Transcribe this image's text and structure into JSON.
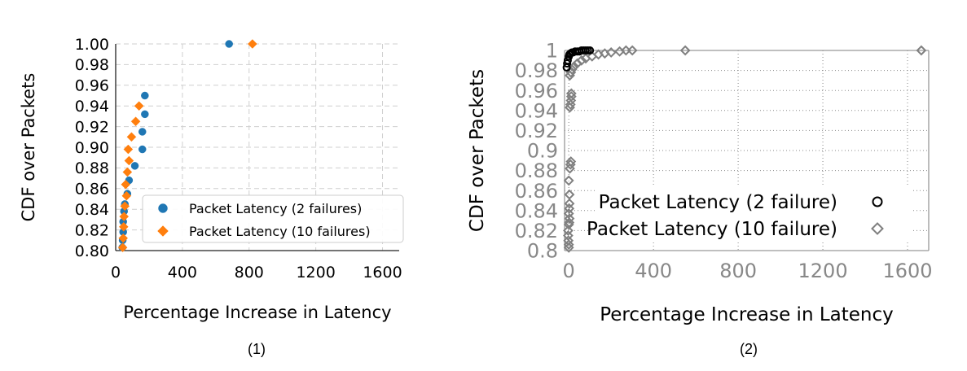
{
  "panels": [
    {
      "caption": "(1)",
      "chart_data": {
        "type": "scatter",
        "title": "",
        "xlabel": "Percentage Increase in Latency",
        "ylabel": "CDF over Packets",
        "xlim": [
          0,
          1700
        ],
        "ylim": [
          0.8,
          1.0
        ],
        "xticks": [
          "0",
          "400",
          "800",
          "1200",
          "1600"
        ],
        "yticks": [
          "0.80",
          "0.82",
          "0.84",
          "0.86",
          "0.88",
          "0.90",
          "0.92",
          "0.94",
          "0.96",
          "0.98",
          "1.00"
        ],
        "grid": true,
        "legend_position": "lower-right",
        "series": [
          {
            "name": "Packet Latency (2 failures)",
            "color": "#1f77b4",
            "marker": "circle",
            "points": [
              [
                680,
                1.0
              ],
              [
                175,
                0.95
              ],
              [
                175,
                0.932
              ],
              [
                160,
                0.915
              ],
              [
                160,
                0.898
              ],
              [
                115,
                0.882
              ],
              [
                80,
                0.868
              ],
              [
                70,
                0.855
              ],
              [
                55,
                0.845
              ],
              [
                50,
                0.838
              ],
              [
                45,
                0.828
              ],
              [
                45,
                0.818
              ],
              [
                42,
                0.81
              ],
              [
                40,
                0.803
              ]
            ]
          },
          {
            "name": "Packet Latency (10 failures)",
            "color": "#ff7f0e",
            "marker": "diamond",
            "points": [
              [
                820,
                1.0
              ],
              [
                140,
                0.94
              ],
              [
                120,
                0.925
              ],
              [
                95,
                0.91
              ],
              [
                75,
                0.898
              ],
              [
                80,
                0.887
              ],
              [
                70,
                0.876
              ],
              [
                60,
                0.864
              ],
              [
                65,
                0.853
              ],
              [
                55,
                0.843
              ],
              [
                50,
                0.833
              ],
              [
                48,
                0.823
              ],
              [
                45,
                0.812
              ],
              [
                42,
                0.803
              ]
            ]
          }
        ]
      }
    },
    {
      "caption": "(2)",
      "chart_data": {
        "type": "scatter",
        "title": "",
        "xlabel": "Percentage Increase in Latency",
        "ylabel": "CDF over Packets",
        "xlim": [
          -20,
          1700
        ],
        "ylim": [
          0.8,
          1.0
        ],
        "xticks": [
          "0",
          "400",
          "800",
          "1200",
          "1600"
        ],
        "yticks": [
          "0.8",
          "0.82",
          "0.84",
          "0.86",
          "0.88",
          "0.9",
          "0.92",
          "0.94",
          "0.96",
          "0.98",
          "1"
        ],
        "grid": true,
        "legend_position": "lower-right",
        "series": [
          {
            "name": "Packet Latency (2 failure)",
            "color": "#000000",
            "marker": "circle-open",
            "points": [
              [
                -10,
                0.983
              ],
              [
                -8,
                0.987
              ],
              [
                -5,
                0.99
              ],
              [
                0,
                0.994
              ],
              [
                3,
                0.996
              ],
              [
                8,
                0.997
              ],
              [
                15,
                0.998
              ],
              [
                20,
                0.998
              ],
              [
                30,
                0.999
              ],
              [
                40,
                0.999
              ],
              [
                50,
                0.999
              ],
              [
                60,
                1.0
              ],
              [
                70,
                1.0
              ],
              [
                80,
                1.0
              ],
              [
                90,
                1.0
              ],
              [
                100,
                1.0
              ]
            ]
          },
          {
            "name": "Packet Latency (10 failure)",
            "color": "#808080",
            "marker": "diamond-open",
            "points": [
              [
                0,
                0.803
              ],
              [
                0,
                0.806
              ],
              [
                -2,
                0.81
              ],
              [
                -3,
                0.815
              ],
              [
                -3,
                0.82
              ],
              [
                0,
                0.826
              ],
              [
                2,
                0.828
              ],
              [
                3,
                0.832
              ],
              [
                0,
                0.837
              ],
              [
                2,
                0.842
              ],
              [
                3,
                0.847
              ],
              [
                3,
                0.856
              ],
              [
                0,
                0.87
              ],
              [
                5,
                0.882
              ],
              [
                8,
                0.886
              ],
              [
                10,
                0.889
              ],
              [
                5,
                0.943
              ],
              [
                8,
                0.946
              ],
              [
                10,
                0.95
              ],
              [
                12,
                0.954
              ],
              [
                12,
                0.957
              ],
              [
                5,
                0.975
              ],
              [
                10,
                0.978
              ],
              [
                15,
                0.981
              ],
              [
                25,
                0.984
              ],
              [
                40,
                0.987
              ],
              [
                60,
                0.99
              ],
              [
                80,
                0.992
              ],
              [
                110,
                0.994
              ],
              [
                140,
                0.996
              ],
              [
                170,
                0.997
              ],
              [
                200,
                0.998
              ],
              [
                240,
                0.999
              ],
              [
                270,
                1.0
              ],
              [
                300,
                1.0
              ],
              [
                550,
                1.0
              ],
              [
                1665,
                1.0
              ]
            ]
          }
        ]
      }
    }
  ]
}
